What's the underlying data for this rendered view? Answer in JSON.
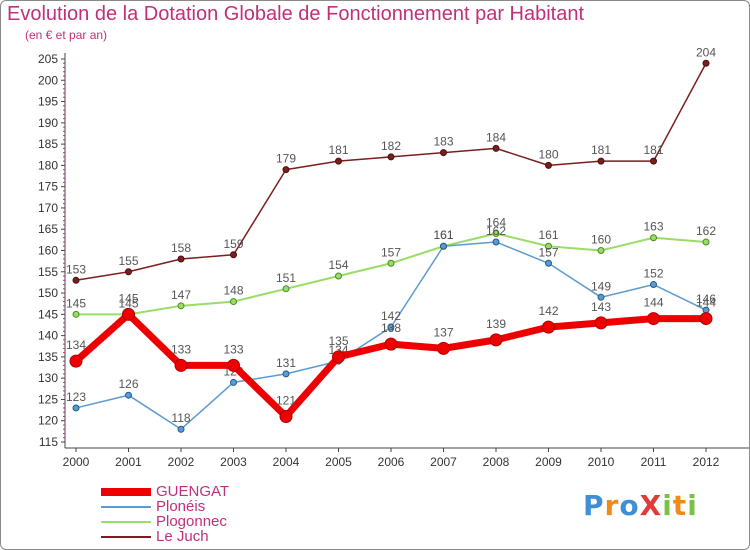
{
  "title": "Evolution de la Dotation Globale de Fonctionnement par Habitant",
  "subtitle": "(en € et par an)",
  "brand": {
    "text": "ProXiti",
    "letters": [
      {
        "ch": "P",
        "color": "#3f8fd8"
      },
      {
        "ch": "r",
        "color": "#f08a1c"
      },
      {
        "ch": "o",
        "color": "#3f8fd8"
      },
      {
        "ch": "X",
        "color": "#e23a3a"
      },
      {
        "ch": "i",
        "color": "#7cc242"
      },
      {
        "ch": "t",
        "color": "#f08a1c"
      },
      {
        "ch": "i",
        "color": "#7cc242"
      }
    ]
  },
  "chart_data": {
    "type": "line",
    "title": "Evolution de la Dotation Globale de Fonctionnement par Habitant",
    "subtitle": "(en € et par an)",
    "x": [
      "2000",
      "2001",
      "2002",
      "2003",
      "2004",
      "2005",
      "2006",
      "2007",
      "2008",
      "2009",
      "2010",
      "2011",
      "2012"
    ],
    "ylim": [
      115,
      205
    ],
    "yticks": [
      115,
      120,
      125,
      130,
      135,
      140,
      145,
      150,
      155,
      160,
      165,
      170,
      175,
      180,
      185,
      190,
      195,
      200,
      205
    ],
    "grid": false,
    "legend_position": "bottom-left",
    "series": [
      {
        "name": "Le Juch",
        "color": "#7a1f1f",
        "values": [
          153,
          155,
          158,
          159,
          179,
          181,
          182,
          183,
          184,
          180,
          181,
          181,
          204
        ]
      },
      {
        "name": "Plogonnec",
        "color": "#98dd66",
        "values": [
          145,
          145,
          147,
          148,
          151,
          154,
          157,
          161,
          164,
          161,
          160,
          163,
          162
        ]
      },
      {
        "name": "Plonéis",
        "color": "#5b9bd2",
        "values": [
          123,
          126,
          118,
          129,
          131,
          134,
          142,
          161,
          162,
          157,
          149,
          152,
          146
        ]
      },
      {
        "name": "GUENGAT",
        "color": "#ee0000",
        "values": [
          134,
          145,
          133,
          133,
          121,
          135,
          138,
          137,
          139,
          142,
          143,
          144,
          144
        ]
      }
    ],
    "legend_order": [
      "GUENGAT",
      "Plonéis",
      "Plogonnec",
      "Le Juch"
    ]
  }
}
